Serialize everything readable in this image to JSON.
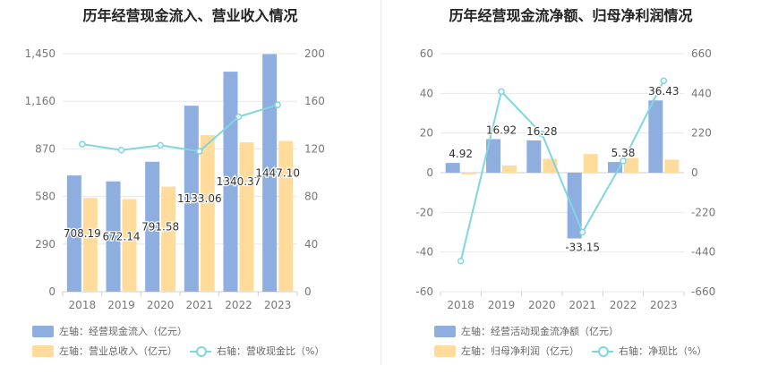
{
  "colors": {
    "bar_primary": "#8eaedf",
    "bar_secondary": "#ffdc9c",
    "line": "#7fd6df",
    "grid": "#e8e8e8",
    "axis_text": "#777777",
    "label_text": "#333333"
  },
  "charts": [
    {
      "title": "历年经营现金流入、营业收入情况",
      "legend": {
        "bar1": "左轴：经营现金流入（亿元）",
        "bar2": "左轴：营业总收入（亿元）",
        "line": "右轴：营收现金比（%）"
      }
    },
    {
      "title": "历年经营现金流净额、归母净利润情况",
      "legend": {
        "bar1": "左轴：经营活动现金流净额（亿元）",
        "bar2": "左轴：归母净利润（亿元）",
        "line": "右轴：净现比（%）"
      }
    }
  ],
  "chart_data": [
    {
      "type": "bar",
      "title": "历年经营现金流入、营业收入情况",
      "categories": [
        "2018",
        "2019",
        "2020",
        "2021",
        "2022",
        "2023"
      ],
      "series": [
        {
          "name": "左轴：经营现金流入（亿元）",
          "axis": "left",
          "type": "bar",
          "values": [
            708.19,
            672.14,
            791.58,
            1133.06,
            1340.37,
            1447.1
          ],
          "labels": [
            "708.19",
            "672.14",
            "791.58",
            "1133.06",
            "1340.37",
            "1447.10"
          ]
        },
        {
          "name": "左轴：营业总收入（亿元）",
          "axis": "left",
          "type": "bar",
          "values": [
            571,
            564,
            640,
            954,
            910,
            918
          ]
        },
        {
          "name": "右轴：营收现金比（%）",
          "axis": "right",
          "type": "line",
          "values": [
            124,
            119,
            123,
            118,
            147,
            157
          ]
        }
      ],
      "left_axis": {
        "ylim": [
          0,
          1450
        ],
        "ticks": [
          "0",
          "290",
          "580",
          "870",
          "1,160",
          "1,450"
        ]
      },
      "right_axis": {
        "ylim": [
          0,
          200
        ],
        "ticks": [
          "0",
          "40",
          "80",
          "120",
          "160",
          "200"
        ]
      },
      "grid": true,
      "legend_position": "bottom"
    },
    {
      "type": "bar",
      "title": "历年经营现金流净额、归母净利润情况",
      "categories": [
        "2018",
        "2019",
        "2020",
        "2021",
        "2022",
        "2023"
      ],
      "series": [
        {
          "name": "左轴：经营活动现金流净额（亿元）",
          "axis": "left",
          "type": "bar",
          "values": [
            4.92,
            16.92,
            16.28,
            -33.15,
            5.38,
            36.43
          ],
          "labels": [
            "4.92",
            "16.92",
            "16.28",
            "-33.15",
            "5.38",
            "36.43"
          ]
        },
        {
          "name": "左轴：归母净利润（亿元）",
          "axis": "left",
          "type": "bar",
          "values": [
            -0.9,
            3.6,
            7.0,
            9.4,
            7.4,
            6.6
          ]
        },
        {
          "name": "右轴：净现比（%）",
          "axis": "right",
          "type": "line",
          "values": [
            -490,
            450,
            215,
            -330,
            65,
            510
          ]
        }
      ],
      "left_axis": {
        "ylim": [
          -60,
          60
        ],
        "ticks": [
          "-60",
          "-40",
          "-20",
          "0",
          "20",
          "40",
          "60"
        ]
      },
      "right_axis": {
        "ylim": [
          -660,
          660
        ],
        "ticks": [
          "-660",
          "-440",
          "-220",
          "0",
          "220",
          "440",
          "660"
        ]
      },
      "grid": true,
      "legend_position": "bottom"
    }
  ]
}
